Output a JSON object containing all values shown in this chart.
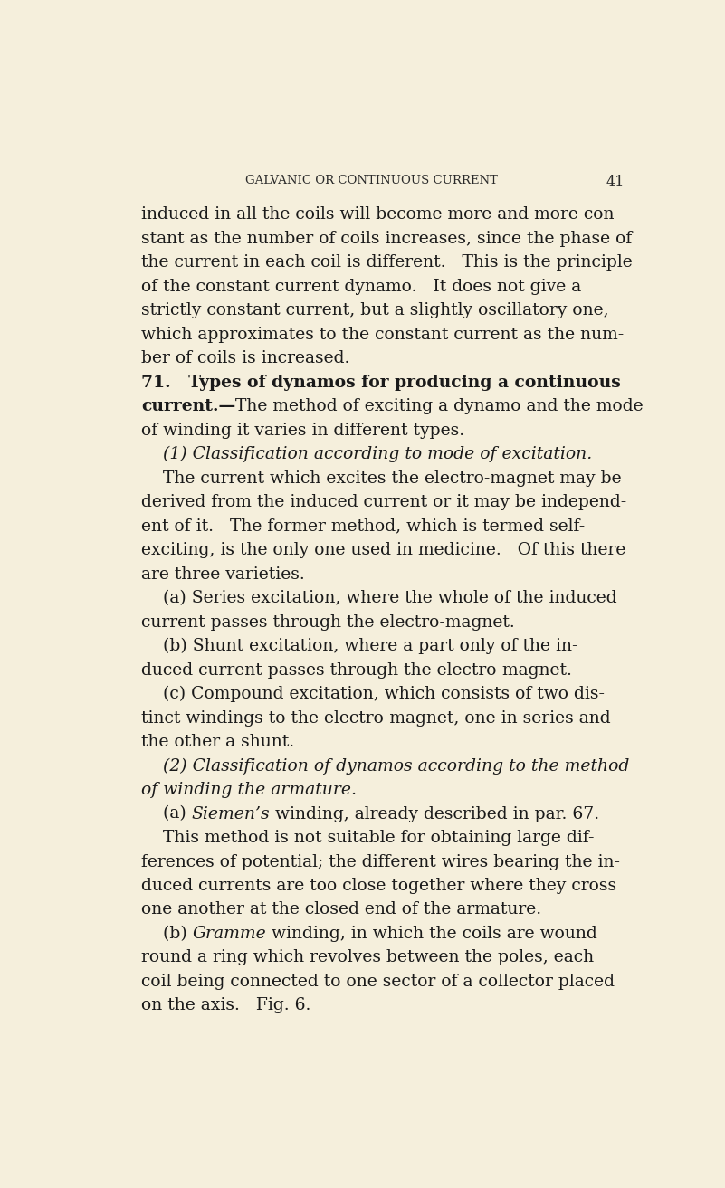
{
  "background_color": "#f5efdc",
  "page_width": 8.01,
  "page_height": 13.13,
  "header_text": "GALVANIC OR CONTINUOUS CURRENT",
  "page_number": "41",
  "body_lines": [
    {
      "text": "induced in all the coils will become more and more con-",
      "style": "normal"
    },
    {
      "text": "stant as the number of coils increases, since the phase of",
      "style": "normal"
    },
    {
      "text": "the current in each coil is different.   This is the principle",
      "style": "normal"
    },
    {
      "text": "of the constant current dynamo.   It does not give a",
      "style": "normal"
    },
    {
      "text": "strictly constant current, but a slightly oscillatory one,",
      "style": "normal"
    },
    {
      "text": "which approximates to the constant current as the num-",
      "style": "normal"
    },
    {
      "text": "ber of coils is increased.",
      "style": "normal"
    },
    {
      "text": "71.   Types of dynamos for producing a continuous",
      "style": "bold"
    },
    {
      "text": "current.—The method of exciting a dynamo and the mode",
      "style": "bold_then_normal",
      "bold_part": "current.—",
      "normal_part": "The method of exciting a dynamo and the mode"
    },
    {
      "text": "of winding it varies in different types.",
      "style": "normal"
    },
    {
      "text": "    (1) Classification according to mode of excitation.",
      "style": "italic"
    },
    {
      "text": "    The current which excites the electro-magnet may be",
      "style": "normal"
    },
    {
      "text": "derived from the induced current or it may be independ-",
      "style": "normal"
    },
    {
      "text": "ent of it.   The former method, which is termed self-",
      "style": "normal"
    },
    {
      "text": "exciting, is the only one used in medicine.   Of this there",
      "style": "normal"
    },
    {
      "text": "are three varieties.",
      "style": "normal"
    },
    {
      "text": "    (a) Series excitation, where the whole of the induced",
      "style": "normal"
    },
    {
      "text": "current passes through the electro-magnet.",
      "style": "normal"
    },
    {
      "text": "    (b) Shunt excitation, where a part only of the in-",
      "style": "normal"
    },
    {
      "text": "duced current passes through the electro-magnet.",
      "style": "normal"
    },
    {
      "text": "    (c) Compound excitation, which consists of two dis-",
      "style": "normal"
    },
    {
      "text": "tinct windings to the electro-magnet, one in series and",
      "style": "normal"
    },
    {
      "text": "the other a shunt.",
      "style": "normal"
    },
    {
      "text": "    (2) Classification of dynamos according to the method",
      "style": "italic"
    },
    {
      "text": "of winding the armature.",
      "style": "italic"
    },
    {
      "text": "    (a) Siemen’s winding, already described in par. 67.",
      "style": "italic_mixed",
      "normal_prefix": "    (a) ",
      "italic_part": "Siemen’s",
      "normal_suffix": " winding, already described in par. 67."
    },
    {
      "text": "    This method is not suitable for obtaining large dif-",
      "style": "normal"
    },
    {
      "text": "ferences of potential; the different wires bearing the in-",
      "style": "normal"
    },
    {
      "text": "duced currents are too close together where they cross",
      "style": "normal"
    },
    {
      "text": "one another at the closed end of the armature.",
      "style": "normal"
    },
    {
      "text": "    (b) Gramme winding, in which the coils are wound",
      "style": "italic_mixed",
      "normal_prefix": "    (b) ",
      "italic_part": "Gramme",
      "normal_suffix": " winding, in which the coils are wound"
    },
    {
      "text": "round a ring which revolves between the poles, each",
      "style": "normal"
    },
    {
      "text": "coil being connected to one sector of a collector placed",
      "style": "normal"
    },
    {
      "text": "on the axis.   Fig. 6.",
      "style": "normal"
    }
  ],
  "font_size_header": 9.5,
  "font_size_body": 13.5,
  "text_color": "#1a1a1a",
  "header_color": "#2a2a2a"
}
